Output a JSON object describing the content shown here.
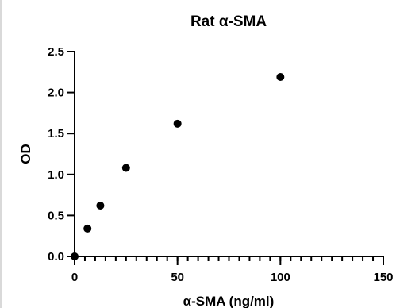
{
  "chart_data": {
    "type": "scatter",
    "title": "Rat α-SMA",
    "xlabel": "α-SMA (ng/ml)",
    "ylabel": "OD",
    "xlim": [
      0,
      150
    ],
    "ylim": [
      0,
      2.5
    ],
    "x_ticks": [
      "0",
      "50",
      "100",
      "150"
    ],
    "y_ticks": [
      "0.0",
      "0.5",
      "1.0",
      "1.5",
      "2.0",
      "2.5"
    ],
    "x_minor_step": 5,
    "y_minor_step": 0.1,
    "grid": false,
    "legend": "none",
    "marker_color": "#000000",
    "series": [
      {
        "x": [
          0,
          6.25,
          12.5,
          25,
          50,
          100
        ],
        "y": [
          0.0,
          0.34,
          0.62,
          1.08,
          1.62,
          2.19
        ]
      }
    ]
  }
}
